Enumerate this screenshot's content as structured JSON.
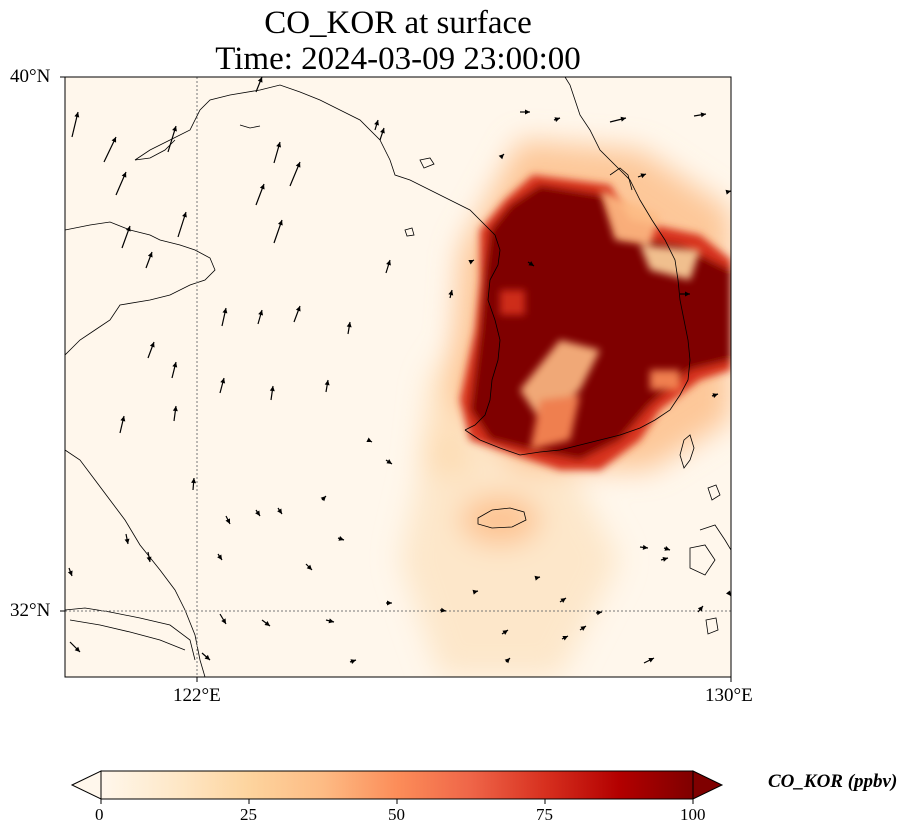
{
  "title": {
    "line1": "CO_KOR at surface",
    "line2": "Time: 2024-03-09 23:00:00"
  },
  "axes": {
    "lat_ticks": [
      {
        "label": "40°N",
        "value": 40
      },
      {
        "label": "32°N",
        "value": 32
      }
    ],
    "lon_ticks": [
      {
        "label": "122°E",
        "value": 122
      },
      {
        "label": "130°E",
        "value": 130
      }
    ],
    "extent": {
      "lon_min": 120,
      "lon_max": 130,
      "lat_min": 31,
      "lat_max": 40
    },
    "gridlines": "dotted"
  },
  "colorbar": {
    "label": "CO_KOR (ppbv)",
    "ticks": [
      "0",
      "25",
      "50",
      "75",
      "100"
    ],
    "range": [
      0,
      100
    ],
    "extend": "both",
    "colormap": [
      "#fff7ec",
      "#fee8c8",
      "#fdd49e",
      "#fdbb84",
      "#fc8d59",
      "#ef6548",
      "#d7301f",
      "#b30000",
      "#7f0000"
    ]
  },
  "chart_data": {
    "type": "heatmap",
    "variable": "CO_KOR",
    "units": "ppbv",
    "description_of_field": "Concentration field centered over the Korean Peninsula with plume drifting southwest over the Yellow Sea",
    "plume_cores": [
      {
        "lon": 127.5,
        "lat": 35.6,
        "value": 100
      },
      {
        "lon": 128.6,
        "lat": 36.8,
        "value": 100
      },
      {
        "lon": 126.9,
        "lat": 37.4,
        "value": 100
      },
      {
        "lon": 129.2,
        "lat": 35.4,
        "value": 95
      },
      {
        "lon": 126.8,
        "lat": 35.0,
        "value": 90
      }
    ],
    "wind_vectors": "north-to-northeast flow over China, weak flow over Yellow Sea"
  }
}
